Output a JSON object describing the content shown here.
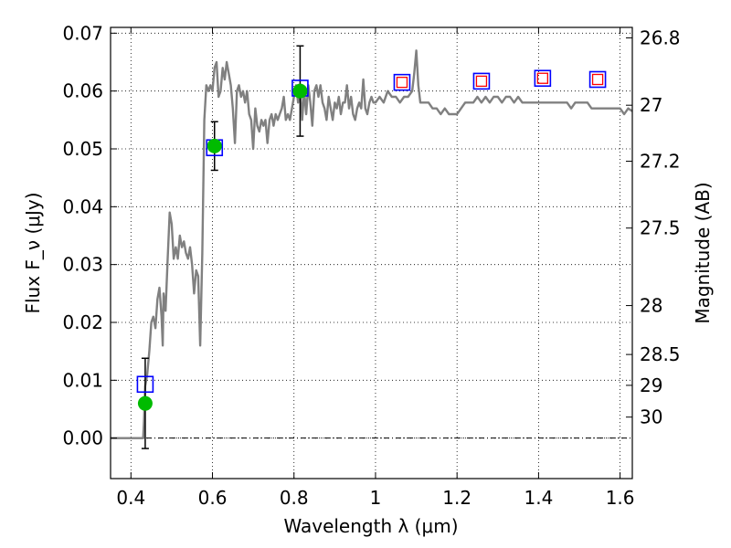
{
  "chart_data": {
    "type": "line",
    "xlabel": "Wavelength λ (μm)",
    "ylabel": "Flux F_ν (μJy)",
    "y2label": "Magnitude (AB)",
    "xlim": [
      0.35,
      1.63
    ],
    "ylim": [
      -0.007,
      0.071
    ],
    "grid": true,
    "x_ticks": [
      {
        "value": 0.4,
        "label": "0.4"
      },
      {
        "value": 0.6,
        "label": "0.6"
      },
      {
        "value": 0.8,
        "label": "0.8"
      },
      {
        "value": 1.0,
        "label": "1"
      },
      {
        "value": 1.2,
        "label": "1.2"
      },
      {
        "value": 1.4,
        "label": "1.4"
      },
      {
        "value": 1.6,
        "label": "1.6"
      }
    ],
    "y_ticks": [
      {
        "value": 0.0,
        "label": "0.00"
      },
      {
        "value": 0.01,
        "label": "0.01"
      },
      {
        "value": 0.02,
        "label": "0.02"
      },
      {
        "value": 0.03,
        "label": "0.03"
      },
      {
        "value": 0.04,
        "label": "0.04"
      },
      {
        "value": 0.05,
        "label": "0.05"
      },
      {
        "value": 0.06,
        "label": "0.06"
      },
      {
        "value": 0.07,
        "label": "0.07"
      }
    ],
    "y2_ticks": [
      {
        "value": 26.8,
        "label": "26.8"
      },
      {
        "value": 27.0,
        "label": "27"
      },
      {
        "value": 27.2,
        "label": "27.2"
      },
      {
        "value": 27.5,
        "label": "27.5"
      },
      {
        "value": 28.0,
        "label": "28"
      },
      {
        "value": 28.5,
        "label": "28.5"
      },
      {
        "value": 29.0,
        "label": "29"
      },
      {
        "value": 30.0,
        "label": "30"
      }
    ],
    "zero_line": 0.0,
    "series": [
      {
        "kind": "sed-model",
        "color": "#808080",
        "points": [
          [
            0.35,
            0.0
          ],
          [
            0.43,
            0.0
          ],
          [
            0.432,
            0.003
          ],
          [
            0.435,
            0.009
          ],
          [
            0.44,
            0.011
          ],
          [
            0.445,
            0.015
          ],
          [
            0.45,
            0.02
          ],
          [
            0.455,
            0.021
          ],
          [
            0.46,
            0.019
          ],
          [
            0.465,
            0.024
          ],
          [
            0.47,
            0.026
          ],
          [
            0.475,
            0.021
          ],
          [
            0.478,
            0.016
          ],
          [
            0.48,
            0.025
          ],
          [
            0.485,
            0.022
          ],
          [
            0.49,
            0.031
          ],
          [
            0.495,
            0.039
          ],
          [
            0.5,
            0.037
          ],
          [
            0.505,
            0.031
          ],
          [
            0.51,
            0.033
          ],
          [
            0.515,
            0.031
          ],
          [
            0.52,
            0.035
          ],
          [
            0.525,
            0.033
          ],
          [
            0.53,
            0.034
          ],
          [
            0.535,
            0.032
          ],
          [
            0.54,
            0.031
          ],
          [
            0.545,
            0.033
          ],
          [
            0.55,
            0.03
          ],
          [
            0.555,
            0.025
          ],
          [
            0.56,
            0.029
          ],
          [
            0.565,
            0.028
          ],
          [
            0.57,
            0.016
          ],
          [
            0.575,
            0.032
          ],
          [
            0.58,
            0.055
          ],
          [
            0.585,
            0.061
          ],
          [
            0.59,
            0.06
          ],
          [
            0.595,
            0.061
          ],
          [
            0.6,
            0.06
          ],
          [
            0.605,
            0.064
          ],
          [
            0.61,
            0.065
          ],
          [
            0.615,
            0.059
          ],
          [
            0.62,
            0.06
          ],
          [
            0.625,
            0.064
          ],
          [
            0.63,
            0.062
          ],
          [
            0.635,
            0.065
          ],
          [
            0.64,
            0.063
          ],
          [
            0.645,
            0.061
          ],
          [
            0.65,
            0.057
          ],
          [
            0.655,
            0.051
          ],
          [
            0.66,
            0.06
          ],
          [
            0.665,
            0.061
          ],
          [
            0.67,
            0.059
          ],
          [
            0.675,
            0.06
          ],
          [
            0.68,
            0.058
          ],
          [
            0.685,
            0.06
          ],
          [
            0.69,
            0.056
          ],
          [
            0.695,
            0.055
          ],
          [
            0.7,
            0.05
          ],
          [
            0.705,
            0.057
          ],
          [
            0.71,
            0.054
          ],
          [
            0.715,
            0.053
          ],
          [
            0.72,
            0.055
          ],
          [
            0.725,
            0.054
          ],
          [
            0.73,
            0.055
          ],
          [
            0.735,
            0.051
          ],
          [
            0.74,
            0.055
          ],
          [
            0.745,
            0.056
          ],
          [
            0.75,
            0.054
          ],
          [
            0.755,
            0.056
          ],
          [
            0.76,
            0.055
          ],
          [
            0.765,
            0.056
          ],
          [
            0.77,
            0.057
          ],
          [
            0.775,
            0.059
          ],
          [
            0.78,
            0.055
          ],
          [
            0.785,
            0.056
          ],
          [
            0.79,
            0.055
          ],
          [
            0.795,
            0.057
          ],
          [
            0.8,
            0.059
          ],
          [
            0.805,
            0.061
          ],
          [
            0.81,
            0.058
          ],
          [
            0.815,
            0.061
          ],
          [
            0.82,
            0.055
          ],
          [
            0.825,
            0.06
          ],
          [
            0.83,
            0.056
          ],
          [
            0.835,
            0.061
          ],
          [
            0.84,
            0.058
          ],
          [
            0.845,
            0.054
          ],
          [
            0.85,
            0.06
          ],
          [
            0.855,
            0.061
          ],
          [
            0.86,
            0.059
          ],
          [
            0.865,
            0.061
          ],
          [
            0.87,
            0.058
          ],
          [
            0.875,
            0.057
          ],
          [
            0.88,
            0.055
          ],
          [
            0.885,
            0.059
          ],
          [
            0.89,
            0.057
          ],
          [
            0.895,
            0.055
          ],
          [
            0.9,
            0.058
          ],
          [
            0.905,
            0.057
          ],
          [
            0.91,
            0.059
          ],
          [
            0.915,
            0.056
          ],
          [
            0.92,
            0.058
          ],
          [
            0.925,
            0.058
          ],
          [
            0.93,
            0.061
          ],
          [
            0.935,
            0.057
          ],
          [
            0.94,
            0.059
          ],
          [
            0.945,
            0.056
          ],
          [
            0.95,
            0.055
          ],
          [
            0.955,
            0.057
          ],
          [
            0.96,
            0.058
          ],
          [
            0.965,
            0.057
          ],
          [
            0.97,
            0.062
          ],
          [
            0.975,
            0.057
          ],
          [
            0.98,
            0.056
          ],
          [
            0.985,
            0.058
          ],
          [
            0.99,
            0.059
          ],
          [
            0.995,
            0.058
          ],
          [
            1.0,
            0.058
          ],
          [
            1.01,
            0.059
          ],
          [
            1.02,
            0.058
          ],
          [
            1.03,
            0.06
          ],
          [
            1.04,
            0.059
          ],
          [
            1.05,
            0.059
          ],
          [
            1.06,
            0.058
          ],
          [
            1.07,
            0.059
          ],
          [
            1.08,
            0.059
          ],
          [
            1.09,
            0.06
          ],
          [
            1.095,
            0.063
          ],
          [
            1.1,
            0.067
          ],
          [
            1.105,
            0.061
          ],
          [
            1.11,
            0.058
          ],
          [
            1.12,
            0.058
          ],
          [
            1.13,
            0.058
          ],
          [
            1.14,
            0.057
          ],
          [
            1.15,
            0.057
          ],
          [
            1.16,
            0.056
          ],
          [
            1.17,
            0.057
          ],
          [
            1.18,
            0.056
          ],
          [
            1.2,
            0.056
          ],
          [
            1.21,
            0.057
          ],
          [
            1.22,
            0.058
          ],
          [
            1.23,
            0.058
          ],
          [
            1.24,
            0.058
          ],
          [
            1.25,
            0.059
          ],
          [
            1.26,
            0.058
          ],
          [
            1.27,
            0.059
          ],
          [
            1.28,
            0.058
          ],
          [
            1.29,
            0.059
          ],
          [
            1.3,
            0.059
          ],
          [
            1.31,
            0.058
          ],
          [
            1.32,
            0.059
          ],
          [
            1.33,
            0.059
          ],
          [
            1.34,
            0.058
          ],
          [
            1.35,
            0.059
          ],
          [
            1.36,
            0.058
          ],
          [
            1.37,
            0.058
          ],
          [
            1.38,
            0.058
          ],
          [
            1.39,
            0.058
          ],
          [
            1.4,
            0.058
          ],
          [
            1.41,
            0.058
          ],
          [
            1.42,
            0.058
          ],
          [
            1.43,
            0.058
          ],
          [
            1.44,
            0.058
          ],
          [
            1.45,
            0.058
          ],
          [
            1.46,
            0.058
          ],
          [
            1.47,
            0.058
          ],
          [
            1.48,
            0.057
          ],
          [
            1.49,
            0.058
          ],
          [
            1.5,
            0.058
          ],
          [
            1.51,
            0.058
          ],
          [
            1.52,
            0.058
          ],
          [
            1.53,
            0.057
          ],
          [
            1.54,
            0.057
          ],
          [
            1.55,
            0.057
          ],
          [
            1.56,
            0.057
          ],
          [
            1.57,
            0.057
          ],
          [
            1.58,
            0.057
          ],
          [
            1.59,
            0.057
          ],
          [
            1.6,
            0.057
          ],
          [
            1.61,
            0.056
          ],
          [
            1.62,
            0.057
          ],
          [
            1.63,
            0.0565
          ]
        ]
      },
      {
        "kind": "observed-points",
        "marker": "circle",
        "color": "#00bb00",
        "points": [
          {
            "x": 0.435,
            "y": 0.006,
            "yerr": 0.0078
          },
          {
            "x": 0.605,
            "y": 0.0505,
            "yerr": 0.0042
          },
          {
            "x": 0.815,
            "y": 0.06,
            "yerr": 0.0078
          }
        ]
      },
      {
        "kind": "model-photometry",
        "marker": "square",
        "color": "#0000ff",
        "points": [
          {
            "x": 0.435,
            "y": 0.0093
          },
          {
            "x": 0.605,
            "y": 0.0502
          },
          {
            "x": 0.815,
            "y": 0.0605
          },
          {
            "x": 1.065,
            "y": 0.0615
          },
          {
            "x": 1.26,
            "y": 0.0617
          },
          {
            "x": 1.41,
            "y": 0.0622
          },
          {
            "x": 1.545,
            "y": 0.062
          }
        ]
      },
      {
        "kind": "predicted-points",
        "marker": "square",
        "color": "#ff0000",
        "points": [
          {
            "x": 1.065,
            "y": 0.0615
          },
          {
            "x": 1.26,
            "y": 0.0617
          },
          {
            "x": 1.41,
            "y": 0.0622
          },
          {
            "x": 1.545,
            "y": 0.062
          }
        ]
      }
    ]
  }
}
